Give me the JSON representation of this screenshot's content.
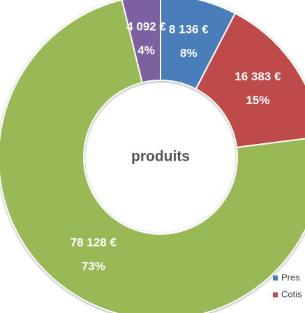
{
  "chart_data": {
    "type": "donut",
    "center_label": "produits",
    "categories": [
      "Pres",
      "Cotis",
      null,
      null
    ],
    "values": [
      8136,
      16383,
      78128,
      4092
    ],
    "value_labels": [
      "8 136 €",
      "16 383 €",
      "78 128 €",
      "4 092 €"
    ],
    "percent_labels": [
      "8%",
      "15%",
      "73%",
      "4%"
    ],
    "colors": [
      "#4a7ebb",
      "#be4b48",
      "#98b954",
      "#7d60a0"
    ]
  }
}
